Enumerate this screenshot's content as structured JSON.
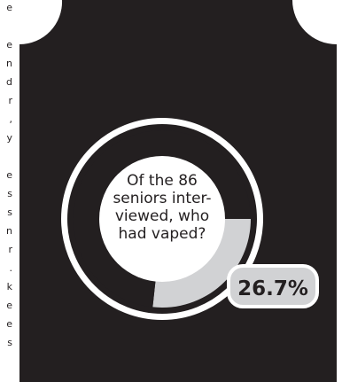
{
  "chart_data": {
    "type": "pie",
    "question_lines": [
      "Of the 86",
      "seniors inter-",
      "viewed, who",
      "had vaped?"
    ],
    "slices": [
      {
        "label": "26.7%",
        "value": 26.7
      },
      {
        "label": "",
        "value": 73.3
      }
    ],
    "colors": {
      "background": "#231f20",
      "highlight": "#d1d2d4",
      "ring": "#ffffff",
      "text": "#231f20"
    }
  },
  "edge_text": {
    "left_column": [
      "e",
      "",
      "e",
      "n",
      "d",
      "r",
      ",",
      "y",
      "",
      "e",
      "s",
      "s",
      "n",
      "r",
      ".",
      "k",
      "e",
      "e",
      "s"
    ]
  }
}
